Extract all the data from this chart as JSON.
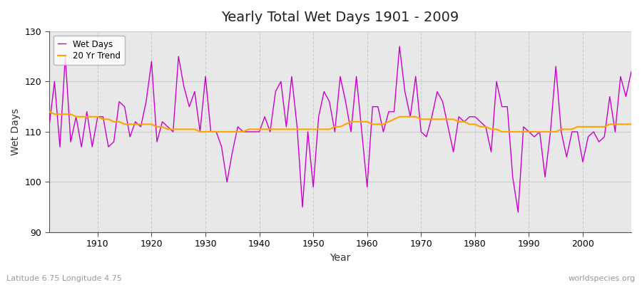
{
  "title": "Yearly Total Wet Days 1901 - 2009",
  "xlabel": "Year",
  "ylabel": "Wet Days",
  "subtitle": "Latitude 6.75 Longitude 4.75",
  "watermark": "worldspecies.org",
  "ylim": [
    90,
    130
  ],
  "xlim": [
    1901,
    2009
  ],
  "yticks": [
    90,
    100,
    110,
    120,
    130
  ],
  "xticks": [
    1910,
    1920,
    1930,
    1940,
    1950,
    1960,
    1970,
    1980,
    1990,
    2000
  ],
  "line_color": "#CC00CC",
  "trend_color": "#FFA500",
  "plot_bg_color": "#E8E8E8",
  "fig_bg_color": "#FFFFFF",
  "years": [
    1901,
    1902,
    1903,
    1904,
    1905,
    1906,
    1907,
    1908,
    1909,
    1910,
    1911,
    1912,
    1913,
    1914,
    1915,
    1916,
    1917,
    1918,
    1919,
    1920,
    1921,
    1922,
    1923,
    1924,
    1925,
    1926,
    1927,
    1928,
    1929,
    1930,
    1931,
    1932,
    1933,
    1934,
    1935,
    1936,
    1937,
    1938,
    1939,
    1940,
    1941,
    1942,
    1943,
    1944,
    1945,
    1946,
    1947,
    1948,
    1949,
    1950,
    1951,
    1952,
    1953,
    1954,
    1955,
    1956,
    1957,
    1958,
    1959,
    1960,
    1961,
    1962,
    1963,
    1964,
    1965,
    1966,
    1967,
    1968,
    1969,
    1970,
    1971,
    1972,
    1973,
    1974,
    1975,
    1976,
    1977,
    1978,
    1979,
    1980,
    1981,
    1982,
    1983,
    1984,
    1985,
    1986,
    1987,
    1988,
    1989,
    1990,
    1991,
    1992,
    1993,
    1994,
    1995,
    1996,
    1997,
    1998,
    1999,
    2000,
    2001,
    2002,
    2003,
    2004,
    2005,
    2006,
    2007,
    2008,
    2009
  ],
  "wet_days": [
    111,
    120,
    107,
    125,
    108,
    113,
    107,
    114,
    107,
    113,
    113,
    107,
    108,
    116,
    115,
    109,
    112,
    111,
    116,
    124,
    108,
    112,
    111,
    110,
    125,
    119,
    115,
    118,
    110,
    121,
    110,
    110,
    107,
    100,
    106,
    111,
    110,
    110,
    110,
    110,
    113,
    110,
    118,
    120,
    111,
    121,
    111,
    95,
    110,
    99,
    113,
    118,
    116,
    110,
    121,
    116,
    110,
    121,
    110,
    99,
    115,
    115,
    110,
    114,
    114,
    127,
    118,
    113,
    121,
    110,
    109,
    113,
    118,
    116,
    111,
    106,
    113,
    112,
    113,
    113,
    112,
    111,
    106,
    120,
    115,
    115,
    101,
    94,
    111,
    110,
    109,
    110,
    101,
    110,
    123,
    110,
    105,
    110,
    110,
    104,
    109,
    110,
    108,
    109,
    117,
    110,
    121,
    117,
    122
  ],
  "trend": [
    114.0,
    113.5,
    113.5,
    113.5,
    113.5,
    113.0,
    113.0,
    113.0,
    113.0,
    113.0,
    112.5,
    112.5,
    112.0,
    112.0,
    111.5,
    111.5,
    111.5,
    111.5,
    111.5,
    111.5,
    111.0,
    111.0,
    110.5,
    110.5,
    110.5,
    110.5,
    110.5,
    110.5,
    110.0,
    110.0,
    110.0,
    110.0,
    110.0,
    110.0,
    110.0,
    110.0,
    110.0,
    110.5,
    110.5,
    110.5,
    110.5,
    110.5,
    110.5,
    110.5,
    110.5,
    110.5,
    110.5,
    110.5,
    110.5,
    110.5,
    110.5,
    110.5,
    110.5,
    111.0,
    111.0,
    111.5,
    112.0,
    112.0,
    112.0,
    112.0,
    111.5,
    111.5,
    111.5,
    112.0,
    112.5,
    113.0,
    113.0,
    113.0,
    113.0,
    112.5,
    112.5,
    112.5,
    112.5,
    112.5,
    112.5,
    112.5,
    112.0,
    112.0,
    111.5,
    111.5,
    111.0,
    111.0,
    110.5,
    110.5,
    110.0,
    110.0,
    110.0,
    110.0,
    110.0,
    110.0,
    110.0,
    110.0,
    110.0,
    110.0,
    110.0,
    110.5,
    110.5,
    110.5,
    111.0,
    111.0,
    111.0,
    111.0,
    111.0,
    111.0,
    111.5,
    111.5,
    111.5,
    111.5,
    111.5
  ]
}
